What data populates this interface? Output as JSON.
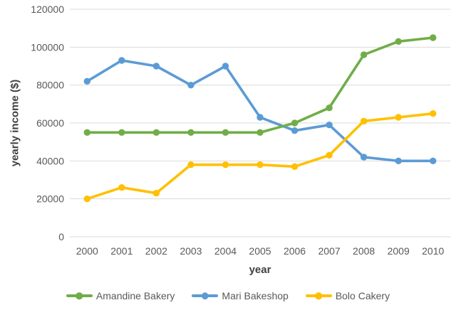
{
  "chart_data": {
    "type": "line",
    "title": "",
    "xlabel": "year",
    "ylabel": "yearly income ($)",
    "x": [
      "2000",
      "2001",
      "2002",
      "2003",
      "2004",
      "2005",
      "2006",
      "2007",
      "2008",
      "2009",
      "2010"
    ],
    "series": [
      {
        "name": "Amandine Bakery",
        "color": "#70AD47",
        "values": [
          55000,
          55000,
          55000,
          55000,
          55000,
          55000,
          60000,
          68000,
          96000,
          103000,
          105000
        ]
      },
      {
        "name": "Mari Bakeshop",
        "color": "#5B9BD5",
        "values": [
          82000,
          93000,
          90000,
          80000,
          90000,
          63000,
          56000,
          59000,
          42000,
          40000,
          40000
        ]
      },
      {
        "name": "Bolo Cakery",
        "color": "#FFC000",
        "values": [
          20000,
          26000,
          23000,
          38000,
          38000,
          38000,
          37000,
          43000,
          61000,
          63000,
          65000
        ]
      }
    ],
    "ylim": [
      0,
      120000
    ],
    "ytick_interval": 20000,
    "ytick_labels": [
      "0",
      "20000",
      "40000",
      "60000",
      "80000",
      "100000",
      "120000"
    ],
    "grid": true,
    "legend_position": "bottom",
    "draw_order": [
      1,
      0,
      2
    ]
  },
  "styles": {
    "background": "#FFFFFF",
    "grid_color": "#D9D9D9",
    "tick_color": "#595959",
    "axis_title_color": "#404040",
    "legend_text_color": "#595959"
  }
}
